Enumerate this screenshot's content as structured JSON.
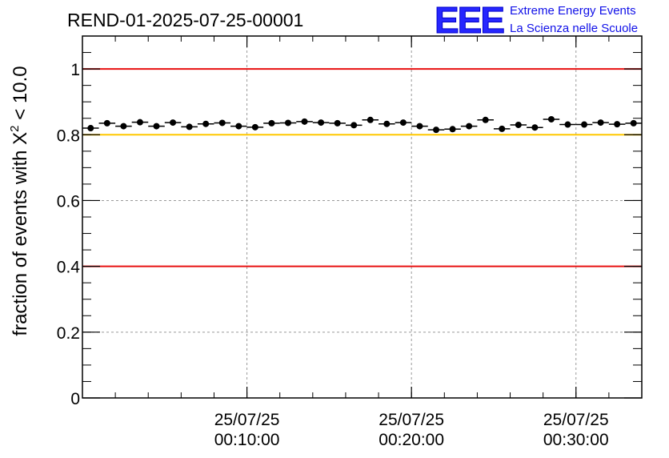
{
  "chart_data": {
    "type": "scatter",
    "title": "REND-01-2025-07-25-00001",
    "ylabel": {
      "prefix": "fraction of events with ",
      "symbol": "X",
      "sup": "2",
      "suffix": " < 10.0"
    },
    "ylim": [
      0,
      1.1
    ],
    "y_ticks": [
      {
        "value": 0,
        "label": "0"
      },
      {
        "value": 0.2,
        "label": "0.2"
      },
      {
        "value": 0.4,
        "label": "0.4"
      },
      {
        "value": 0.6,
        "label": "0.6"
      },
      {
        "value": 0.8,
        "label": "0.8"
      },
      {
        "value": 1,
        "label": "1"
      }
    ],
    "xlim_min": [
      0,
      34
    ],
    "x_ticks": [
      {
        "value": 10,
        "label1": "25/07/25",
        "label2": "00:10:00"
      },
      {
        "value": 20,
        "label1": "25/07/25",
        "label2": "00:20:00"
      },
      {
        "value": 30,
        "label1": "25/07/25",
        "label2": "00:30:00"
      }
    ],
    "x_minor_step_min": 2,
    "y_minor_step": 0.05,
    "grid": true,
    "reference_lines": [
      {
        "value": 1.0,
        "color": "#e81010"
      },
      {
        "value": 0.8,
        "color": "#ffc800"
      },
      {
        "value": 0.4,
        "color": "#e81010"
      }
    ],
    "bin_width_min": 1,
    "x": [
      0.5,
      1.5,
      2.5,
      3.5,
      4.5,
      5.5,
      6.5,
      7.5,
      8.5,
      9.5,
      10.5,
      11.5,
      12.5,
      13.5,
      14.5,
      15.5,
      16.5,
      17.5,
      18.5,
      19.5,
      20.5,
      21.5,
      22.5,
      23.5,
      24.5,
      25.5,
      26.5,
      27.5,
      28.5,
      29.5,
      30.5,
      31.5,
      32.5,
      33.5
    ],
    "values": [
      0.82,
      0.835,
      0.826,
      0.838,
      0.826,
      0.837,
      0.824,
      0.833,
      0.836,
      0.826,
      0.823,
      0.835,
      0.836,
      0.84,
      0.837,
      0.835,
      0.829,
      0.845,
      0.833,
      0.837,
      0.826,
      0.815,
      0.817,
      0.826,
      0.845,
      0.818,
      0.83,
      0.822,
      0.847,
      0.831,
      0.831,
      0.837,
      0.832,
      0.835
    ],
    "errors": [
      0.007,
      0.007,
      0.007,
      0.007,
      0.007,
      0.007,
      0.007,
      0.007,
      0.007,
      0.007,
      0.007,
      0.007,
      0.007,
      0.007,
      0.007,
      0.007,
      0.007,
      0.007,
      0.007,
      0.007,
      0.007,
      0.007,
      0.007,
      0.007,
      0.007,
      0.007,
      0.007,
      0.007,
      0.007,
      0.007,
      0.007,
      0.007,
      0.007,
      0.007
    ],
    "marker_color": "#000000"
  },
  "logo": {
    "mark": "EEE",
    "line1": "Extreme Energy Events",
    "line2": "La Scienza nelle Scuole",
    "color": "#1010e8"
  }
}
